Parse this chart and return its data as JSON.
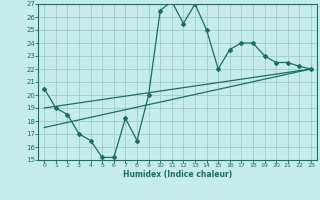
{
  "xlabel": "Humidex (Indice chaleur)",
  "ylabel": "",
  "bg_color": "#c5ece8",
  "grid_color": "#9dcec9",
  "line_color": "#1a6e64",
  "xlim": [
    -0.5,
    23.5
  ],
  "ylim": [
    15,
    27
  ],
  "xticks": [
    0,
    1,
    2,
    3,
    4,
    5,
    6,
    7,
    8,
    9,
    10,
    11,
    12,
    13,
    14,
    15,
    16,
    17,
    18,
    19,
    20,
    21,
    22,
    23
  ],
  "yticks": [
    15,
    16,
    17,
    18,
    19,
    20,
    21,
    22,
    23,
    24,
    25,
    26,
    27
  ],
  "line1_x": [
    0,
    1,
    2,
    3,
    4,
    5,
    6,
    7,
    8,
    9,
    10,
    11,
    12,
    13,
    14,
    15,
    16,
    17,
    18,
    19,
    20,
    21,
    22,
    23
  ],
  "line1_y": [
    20.5,
    19.0,
    18.5,
    17.0,
    16.5,
    15.2,
    15.2,
    18.2,
    16.5,
    20.0,
    26.5,
    27.2,
    25.5,
    27.0,
    25.0,
    22.0,
    23.5,
    24.0,
    24.0,
    23.0,
    22.5,
    22.5,
    22.2,
    22.0
  ],
  "line2_x": [
    0,
    23
  ],
  "line2_y": [
    19.0,
    22.0
  ],
  "line3_x": [
    0,
    23
  ],
  "line3_y": [
    17.5,
    22.0
  ]
}
